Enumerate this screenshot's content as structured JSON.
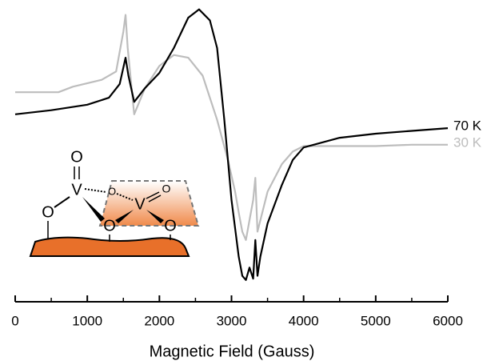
{
  "chart_data": {
    "type": "line",
    "xlabel": "Magnetic Field (Gauss)",
    "xlim": [
      0,
      6000
    ],
    "xticks": [
      0,
      1000,
      2000,
      3000,
      4000,
      5000,
      6000
    ],
    "xminor_ticks": [
      500,
      1500,
      2500,
      3500,
      4500,
      5500
    ],
    "ylim": [
      -100,
      100
    ],
    "series": [
      {
        "name": "70 K",
        "color": "#000000",
        "x": [
          0,
          500,
          1000,
          1300,
          1450,
          1530,
          1570,
          1650,
          1800,
          2000,
          2200,
          2400,
          2550,
          2700,
          2800,
          2900,
          3000,
          3100,
          3150,
          3200,
          3250,
          3300,
          3330,
          3360,
          3400,
          3500,
          3700,
          3850,
          4000,
          4500,
          5000,
          5500,
          6000
        ],
        "values": [
          23,
          26,
          30,
          35,
          45,
          64,
          51,
          32,
          42,
          53,
          71,
          93,
          99,
          91,
          71,
          19,
          -39,
          -80,
          -94,
          -97,
          -88,
          -96,
          -68,
          -94,
          -80,
          -56,
          -28,
          -10,
          -1,
          6,
          9,
          11,
          13
        ]
      },
      {
        "name": "30 K",
        "color": "#bdbdbd",
        "x": [
          0,
          600,
          800,
          1200,
          1400,
          1500,
          1530,
          1560,
          1650,
          1800,
          2000,
          2200,
          2400,
          2600,
          2800,
          2950,
          3050,
          3100,
          3150,
          3200,
          3300,
          3330,
          3360,
          3500,
          3700,
          3850,
          4000,
          5000,
          5500,
          6000
        ],
        "values": [
          39,
          39,
          43,
          48,
          54,
          83,
          95,
          71,
          23,
          42,
          58,
          66,
          64,
          51,
          19,
          -10,
          -33,
          -48,
          -62,
          -68,
          -39,
          -23,
          -62,
          -33,
          -13,
          -4,
          0,
          0,
          1,
          1
        ]
      }
    ],
    "annotations": [
      "O",
      "V",
      "O",
      "O",
      "V",
      "O",
      "O",
      "O"
    ]
  }
}
